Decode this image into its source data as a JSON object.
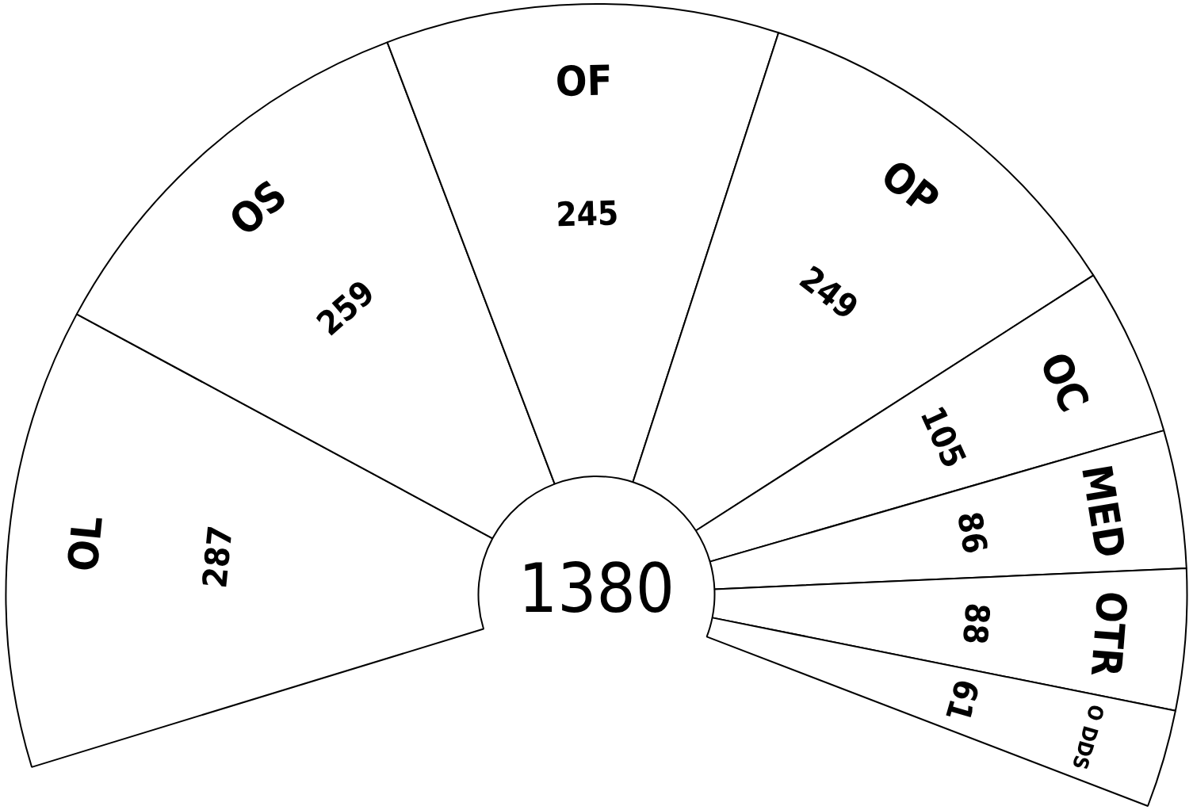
{
  "chart_data": {
    "type": "donut",
    "categories": [
      "OL",
      "OS",
      "OF",
      "OP",
      "OC",
      "MED",
      "OTR",
      "O DDS"
    ],
    "values": [
      287,
      259,
      245,
      249,
      105,
      86,
      88,
      61
    ],
    "colors": [
      "#ffffff",
      "#ffffff",
      "#ffffff",
      "#ffffff",
      "#ffffff",
      "#ffffff",
      "#ffffff",
      "#ffffff"
    ],
    "data_labels": true,
    "annotations": [
      "1380"
    ]
  }
}
